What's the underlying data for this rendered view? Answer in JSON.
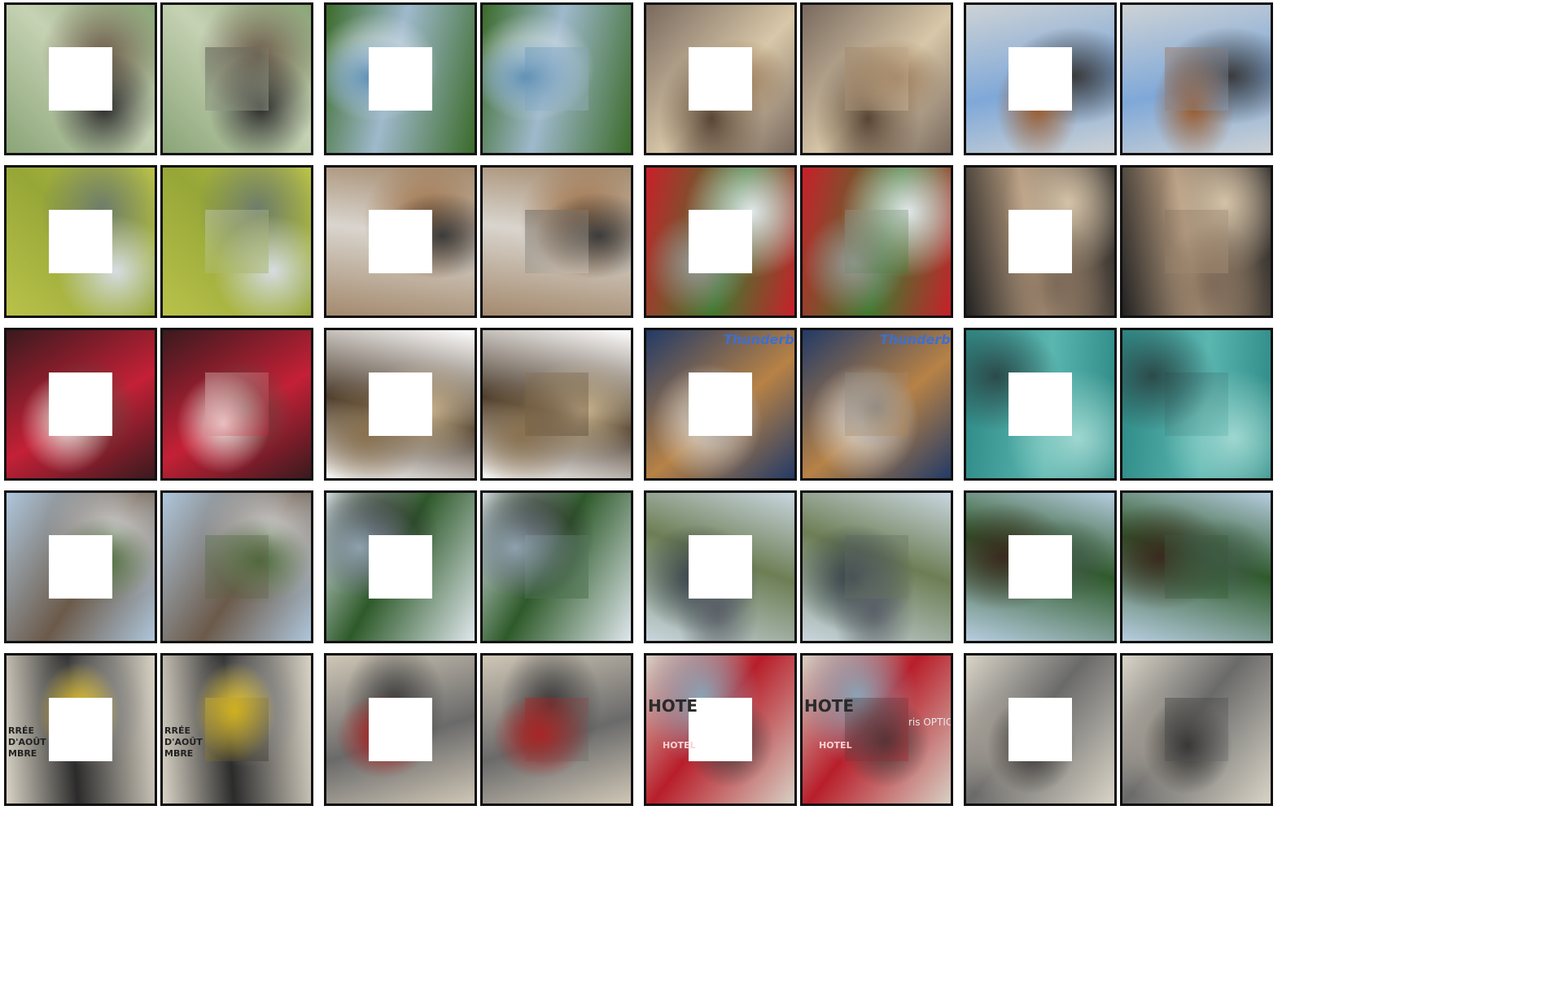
{
  "figure": {
    "layout": {
      "rows": 5,
      "pair_groups_per_row": 4,
      "panels_per_group": 2
    },
    "panel_roles": [
      "masked-input",
      "inpainted-result"
    ],
    "rows": [
      {
        "groups": [
          {
            "scene": "chickadee-on-branch",
            "palette": [
              "#8aa477",
              "#c6d2b4",
              "#2b2b2b",
              "#6d5c4a"
            ]
          },
          {
            "scene": "sailboat-on-lake",
            "palette": [
              "#3b6b2a",
              "#9fb9cc",
              "#5e8fb3",
              "#e7eef4"
            ]
          },
          {
            "scene": "nursery-room-with-teddy",
            "palette": [
              "#7a6a5f",
              "#d8c7a8",
              "#9a7a5a",
              "#5a4636"
            ]
          },
          {
            "scene": "blue-sock-by-door",
            "palette": [
              "#cdd2d5",
              "#7fa8d8",
              "#9a5a2a",
              "#3b3b3b"
            ]
          }
        ]
      },
      {
        "groups": [
          {
            "scene": "spotted-dog-on-grass",
            "palette": [
              "#b9c24a",
              "#96a637",
              "#d6dde2",
              "#6e7c6b"
            ]
          },
          {
            "scene": "junco-on-log",
            "palette": [
              "#a48a6e",
              "#d9d5ce",
              "#3c3c3c",
              "#9c6b3e"
            ]
          },
          {
            "scene": "red-lightship-by-road",
            "palette": [
              "#c8202a",
              "#3f7a2f",
              "#9a9a9a",
              "#e2e8ec"
            ]
          },
          {
            "scene": "stork-on-gravel",
            "palette": [
              "#222222",
              "#b59a7e",
              "#7d6a58",
              "#d4c2a8"
            ]
          }
        ]
      },
      {
        "groups": [
          {
            "scene": "girl-in-floral-dress",
            "palette": [
              "#3a1a1e",
              "#c42036",
              "#f2e4e0",
              "#5a4a40"
            ]
          },
          {
            "scene": "crab-on-white",
            "palette": [
              "#ffffff",
              "#4a3a2a",
              "#8a7250",
              "#c9b48e"
            ]
          },
          {
            "scene": "dog-on-sweatshirt",
            "palette": [
              "#233a66",
              "#b78246",
              "#8e8e8e",
              "#d9d9d9"
            ]
          },
          {
            "scene": "fish-underwater",
            "palette": [
              "#2e8a86",
              "#5bb6b0",
              "#2b4a4a",
              "#9ed7d0"
            ]
          }
        ]
      },
      {
        "groups": [
          {
            "scene": "street-tower-with-railing",
            "palette": [
              "#aec6db",
              "#6b5a4a",
              "#4a6b3a",
              "#cfcfcf"
            ]
          },
          {
            "scene": "lamp-post-by-river",
            "palette": [
              "#dfe7ec",
              "#2e5a2a",
              "#8ea1ad",
              "#2b2b2b"
            ]
          },
          {
            "scene": "trees-and-plaza",
            "palette": [
              "#c9d6df",
              "#6d7e55",
              "#5a6068",
              "#2e3a44"
            ]
          },
          {
            "scene": "river-with-tree-trunk",
            "palette": [
              "#b7cde0",
              "#2e5a2a",
              "#425a4a",
              "#3a2a1e"
            ]
          }
        ]
      },
      {
        "groups": [
          {
            "scene": "building-facade-with-sign",
            "palette": [
              "#d9d3c6",
              "#2b2b2b",
              "#e6c21e",
              "#8a8a8a"
            ]
          },
          {
            "scene": "arched-shopfront",
            "palette": [
              "#cfc6b6",
              "#6a6a6a",
              "#b31a1a",
              "#3a3a3a"
            ]
          },
          {
            "scene": "hotel-with-optic-shop",
            "palette": [
              "#d7d0c4",
              "#b81e2a",
              "#3a3a3a",
              "#8aa4b6"
            ]
          },
          {
            "scene": "stone-facade-with-fence",
            "palette": [
              "#d9d4c7",
              "#6a6a6a",
              "#2b2b2b",
              "#a9a196"
            ]
          }
        ]
      }
    ],
    "signage": [
      "HOTE",
      "ris OPTIC",
      "HOTEL",
      "RRÉE",
      "D'AOÛT",
      "MBRE",
      "Thunderbirds"
    ]
  }
}
